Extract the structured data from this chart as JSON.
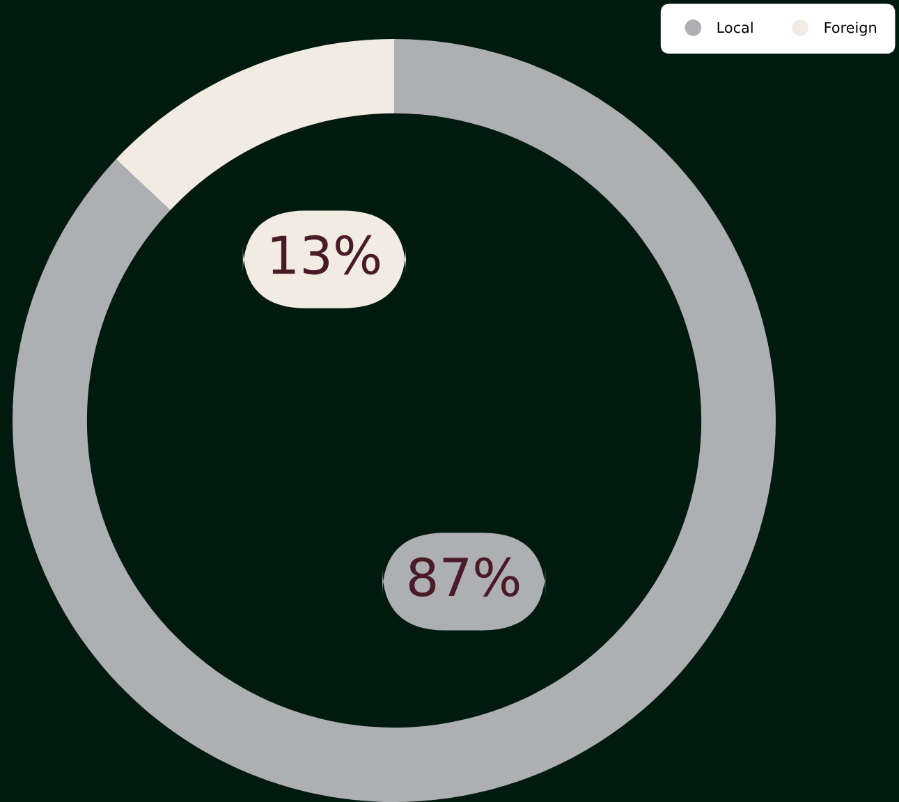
{
  "chart_data": {
    "type": "donut",
    "categories": [
      "Local",
      "Foreign"
    ],
    "values": [
      87,
      13
    ],
    "colors": [
      "#aeafb2",
      "#f1ebe2"
    ],
    "value_labels": [
      "87%",
      "13%"
    ],
    "legend": "top right"
  }
}
